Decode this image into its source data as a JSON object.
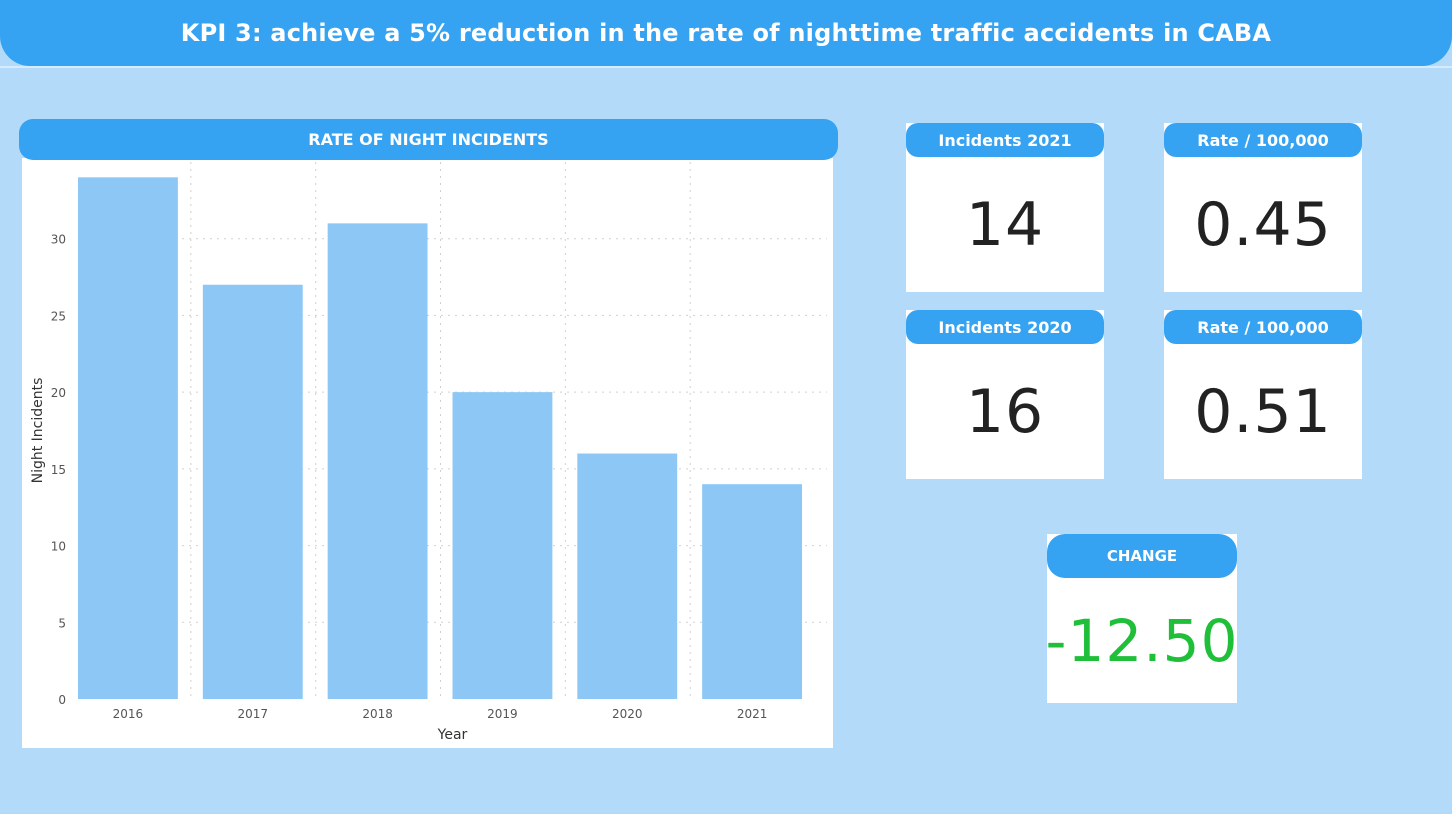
{
  "header": {
    "title": "KPI 3: achieve a 5% reduction in the rate of nighttime traffic accidents in CABA"
  },
  "colors": {
    "accent": "#35a3f2",
    "background": "#b3dbf9",
    "bar": "#8cc7f5",
    "positive_change": "#1fbf3a"
  },
  "chart_panel": {
    "title": "RATE OF NIGHT INCIDENTS"
  },
  "chart_data": {
    "type": "bar",
    "title": "RATE OF NIGHT INCIDENTS",
    "categories": [
      "2016",
      "2017",
      "2018",
      "2019",
      "2020",
      "2021"
    ],
    "values": [
      34,
      27,
      31,
      20,
      16,
      14
    ],
    "xlabel": "Year",
    "ylabel": "Night Incidents",
    "ylim": [
      0,
      35
    ],
    "yticks": [
      0,
      5,
      10,
      15,
      20,
      25,
      30
    ],
    "grid": true
  },
  "cards": {
    "incidents_2021": {
      "label": "Incidents 2021",
      "value": "14"
    },
    "rate_2021": {
      "label": "Rate / 100,000",
      "value": "0.45"
    },
    "incidents_2020": {
      "label": "Incidents 2020",
      "value": "16"
    },
    "rate_2020": {
      "label": "Rate / 100,000",
      "value": "0.51"
    },
    "change": {
      "label": "CHANGE",
      "value": "-12.50"
    }
  }
}
